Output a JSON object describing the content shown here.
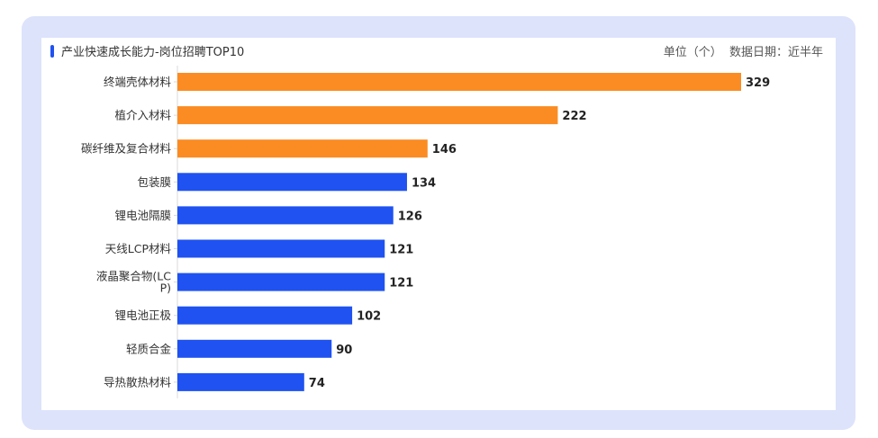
{
  "header": {
    "title": "产业快速成长能力-岗位招聘TOP10",
    "unit_text": "单位（个）  数据日期：近半年"
  },
  "colors": {
    "highlight": "#fb8c23",
    "normal": "#1f52f0",
    "frame": "#dde3fb"
  },
  "chart_data": {
    "type": "bar",
    "orientation": "horizontal",
    "title": "产业快速成长能力-岗位招聘TOP10",
    "categories": [
      "终端壳体材料",
      "植介入材料",
      "碳纤维及复合材料",
      "包装膜",
      "锂电池隔膜",
      "天线LCP材料",
      "液晶聚合物(LCP)",
      "锂电池正极",
      "轻质合金",
      "导热散热材料"
    ],
    "values": [
      329,
      222,
      146,
      134,
      126,
      121,
      121,
      102,
      90,
      74
    ],
    "highlight_top": 3,
    "xlim": [
      0,
      329
    ],
    "grid": false,
    "legend": "none"
  }
}
